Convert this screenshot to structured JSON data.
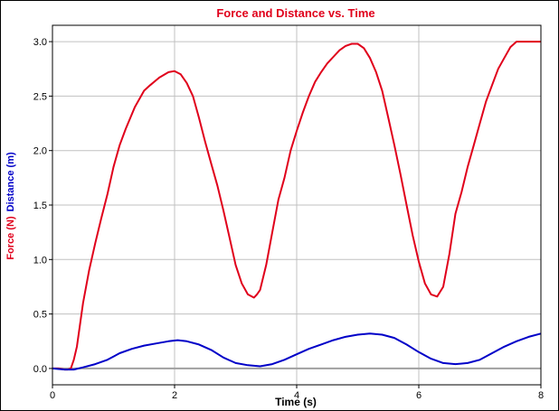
{
  "chart_data": {
    "type": "line",
    "title": "Force and Distance vs. Time",
    "xlabel": "Time (s)",
    "ylabels": [
      {
        "text": "Force (N)",
        "color": "#e0001b"
      },
      {
        "text": "Distance (m)",
        "color": "#0000c8"
      }
    ],
    "xlim": [
      0,
      8
    ],
    "ylim": [
      -0.15,
      3.15
    ],
    "xticks": [
      "0",
      "2",
      "4",
      "6",
      "8"
    ],
    "yticks": [
      "0.0",
      "0.5",
      "1.0",
      "1.5",
      "2.0",
      "2.5",
      "3.0"
    ],
    "grid": true,
    "series": [
      {
        "color": "#e0001b",
        "x": [
          0,
          0.1,
          0.2,
          0.25,
          0.3,
          0.35,
          0.4,
          0.45,
          0.5,
          0.6,
          0.7,
          0.8,
          0.9,
          1.0,
          1.1,
          1.2,
          1.35,
          1.5,
          1.6,
          1.75,
          1.9,
          2.0,
          2.1,
          2.2,
          2.3,
          2.4,
          2.5,
          2.6,
          2.7,
          2.8,
          2.9,
          3.0,
          3.1,
          3.2,
          3.3,
          3.35,
          3.4,
          3.5,
          3.6,
          3.7,
          3.8,
          3.9,
          4.0,
          4.1,
          4.2,
          4.3,
          4.4,
          4.5,
          4.6,
          4.7,
          4.8,
          4.9,
          5.0,
          5.1,
          5.2,
          5.3,
          5.4,
          5.5,
          5.6,
          5.7,
          5.8,
          5.9,
          6.0,
          6.1,
          6.2,
          6.3,
          6.4,
          6.5,
          6.6,
          6.7,
          6.8,
          6.9,
          7.0,
          7.1,
          7.2,
          7.3,
          7.4,
          7.5,
          7.6,
          7.7,
          7.8,
          7.9,
          8.0
        ],
        "y": [
          0.0,
          0.0,
          -0.01,
          -0.01,
          0.0,
          0.08,
          0.2,
          0.4,
          0.6,
          0.9,
          1.15,
          1.38,
          1.6,
          1.85,
          2.05,
          2.2,
          2.4,
          2.55,
          2.6,
          2.67,
          2.72,
          2.73,
          2.7,
          2.62,
          2.5,
          2.3,
          2.08,
          1.88,
          1.68,
          1.45,
          1.2,
          0.95,
          0.78,
          0.68,
          0.65,
          0.68,
          0.72,
          0.95,
          1.25,
          1.55,
          1.75,
          2.0,
          2.18,
          2.35,
          2.5,
          2.63,
          2.72,
          2.8,
          2.86,
          2.92,
          2.96,
          2.98,
          2.98,
          2.94,
          2.85,
          2.72,
          2.55,
          2.3,
          2.05,
          1.78,
          1.5,
          1.22,
          0.98,
          0.78,
          0.68,
          0.66,
          0.75,
          1.05,
          1.42,
          1.62,
          1.85,
          2.05,
          2.25,
          2.45,
          2.6,
          2.75,
          2.85,
          2.95,
          3.0,
          3.0,
          3.0,
          3.0,
          3.0
        ],
        "note_x": [
          0,
          0.1,
          0.2,
          0.3,
          0.35,
          0.4,
          0.45,
          0.5,
          0.6,
          0.7,
          0.8,
          0.9,
          1.0,
          1.1,
          1.2,
          1.35,
          1.5,
          1.65,
          1.8,
          1.95,
          2.05,
          2.15,
          2.25,
          2.35,
          2.45,
          2.55,
          2.65,
          2.75,
          2.85,
          2.95,
          3.05,
          3.15,
          3.25,
          3.35,
          3.42,
          3.5,
          3.6,
          3.7,
          3.8,
          3.9,
          4.0,
          4.1,
          4.2,
          4.3,
          4.4,
          4.5,
          4.6,
          4.7,
          4.8,
          4.9,
          5.0,
          5.1,
          5.2,
          5.3,
          5.4,
          5.5,
          5.6,
          5.7,
          5.8,
          5.9,
          6.0,
          6.1,
          6.2,
          6.3,
          6.4,
          6.5,
          6.6,
          6.7,
          6.8,
          6.9,
          7.0,
          7.1,
          7.2,
          7.3,
          7.4,
          7.5,
          7.6,
          7.7,
          7.8,
          7.9,
          8.0
        ]
      },
      {
        "color": "#0000c8",
        "x": [
          0,
          0.2,
          0.35,
          0.5,
          0.7,
          0.9,
          1.1,
          1.3,
          1.5,
          1.7,
          1.9,
          2.05,
          2.2,
          2.4,
          2.6,
          2.8,
          3.0,
          3.2,
          3.4,
          3.6,
          3.8,
          4.0,
          4.2,
          4.4,
          4.6,
          4.8,
          5.0,
          5.2,
          5.4,
          5.6,
          5.8,
          6.0,
          6.2,
          6.4,
          6.6,
          6.8,
          7.0,
          7.2,
          7.4,
          7.6,
          7.8,
          8.0
        ],
        "y": [
          0.0,
          -0.01,
          -0.01,
          0.01,
          0.04,
          0.08,
          0.14,
          0.18,
          0.21,
          0.23,
          0.25,
          0.26,
          0.25,
          0.22,
          0.17,
          0.1,
          0.05,
          0.03,
          0.02,
          0.04,
          0.08,
          0.13,
          0.18,
          0.22,
          0.26,
          0.29,
          0.31,
          0.32,
          0.31,
          0.28,
          0.22,
          0.15,
          0.09,
          0.05,
          0.04,
          0.05,
          0.08,
          0.14,
          0.2,
          0.25,
          0.29,
          0.32
        ]
      }
    ]
  }
}
